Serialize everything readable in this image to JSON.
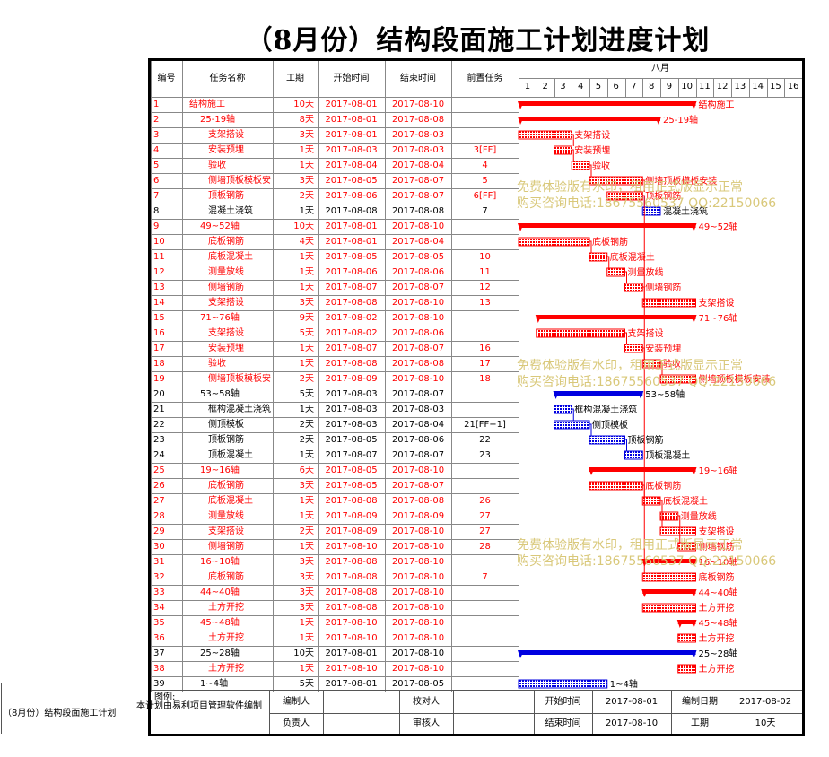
{
  "title": "（8月份）结构段面施工计划进度计划",
  "table": {
    "headers": [
      "编号",
      "任务名称",
      "工期",
      "开始时间",
      "结束时间",
      "前置任务"
    ],
    "month_label": "八月",
    "days": [
      "1",
      "2",
      "3",
      "4",
      "5",
      "6",
      "7",
      "8",
      "9",
      "10",
      "11",
      "12",
      "13",
      "14",
      "15",
      "16"
    ]
  },
  "colors": {
    "red": "#ff0000",
    "blue": "#0000e0",
    "grid": "#888888",
    "watermark": "#d9c87a"
  },
  "chart_data": {
    "type": "gantt",
    "x_unit": "day of August 2017",
    "x_range": [
      1,
      16
    ],
    "tasks": [
      {
        "id": "1",
        "name": "结构施工",
        "duration": "10天",
        "start": "2017-08-01",
        "end": "2017-08-10",
        "pred": "",
        "color": "red",
        "summary": true,
        "indent": 0,
        "s": 1,
        "e": 10,
        "label": "结构施工"
      },
      {
        "id": "2",
        "name": "25-19轴",
        "duration": "8天",
        "start": "2017-08-01",
        "end": "2017-08-08",
        "pred": "",
        "color": "red",
        "summary": true,
        "indent": 1,
        "s": 1,
        "e": 8,
        "label": "25-19轴"
      },
      {
        "id": "3",
        "name": "支架搭设",
        "duration": "3天",
        "start": "2017-08-01",
        "end": "2017-08-03",
        "pred": "",
        "color": "red",
        "summary": false,
        "indent": 2,
        "s": 1,
        "e": 3,
        "label": "支架搭设"
      },
      {
        "id": "4",
        "name": "安装预埋",
        "duration": "1天",
        "start": "2017-08-03",
        "end": "2017-08-03",
        "pred": "3[FF]",
        "color": "red",
        "summary": false,
        "indent": 2,
        "s": 3,
        "e": 3,
        "label": "安装预埋"
      },
      {
        "id": "5",
        "name": "验收",
        "duration": "1天",
        "start": "2017-08-04",
        "end": "2017-08-04",
        "pred": "4",
        "color": "red",
        "summary": false,
        "indent": 2,
        "s": 4,
        "e": 4,
        "label": "验收"
      },
      {
        "id": "6",
        "name": "侧墙顶板模板安装",
        "duration": "3天",
        "start": "2017-08-05",
        "end": "2017-08-07",
        "pred": "5",
        "color": "red",
        "summary": false,
        "indent": 2,
        "s": 5,
        "e": 7,
        "label": "侧墙顶板模板安装"
      },
      {
        "id": "7",
        "name": "顶板钢筋",
        "duration": "2天",
        "start": "2017-08-06",
        "end": "2017-08-07",
        "pred": "6[FF]",
        "color": "red",
        "summary": false,
        "indent": 2,
        "s": 6,
        "e": 7,
        "label": "顶板钢筋"
      },
      {
        "id": "8",
        "name": "混凝土浇筑",
        "duration": "1天",
        "start": "2017-08-08",
        "end": "2017-08-08",
        "pred": "7",
        "color": "blue",
        "summary": false,
        "indent": 2,
        "s": 8,
        "e": 8,
        "label": "混凝土浇筑"
      },
      {
        "id": "9",
        "name": "49~52轴",
        "duration": "10天",
        "start": "2017-08-01",
        "end": "2017-08-10",
        "pred": "",
        "color": "red",
        "summary": true,
        "indent": 1,
        "s": 1,
        "e": 10,
        "label": "49~52轴"
      },
      {
        "id": "10",
        "name": "底板钢筋",
        "duration": "4天",
        "start": "2017-08-01",
        "end": "2017-08-04",
        "pred": "",
        "color": "red",
        "summary": false,
        "indent": 2,
        "s": 1,
        "e": 4,
        "label": "底板钢筋"
      },
      {
        "id": "11",
        "name": "底板混凝土",
        "duration": "1天",
        "start": "2017-08-05",
        "end": "2017-08-05",
        "pred": "10",
        "color": "red",
        "summary": false,
        "indent": 2,
        "s": 5,
        "e": 5,
        "label": "底板混凝土"
      },
      {
        "id": "12",
        "name": "测量放线",
        "duration": "1天",
        "start": "2017-08-06",
        "end": "2017-08-06",
        "pred": "11",
        "color": "red",
        "summary": false,
        "indent": 2,
        "s": 6,
        "e": 6,
        "label": "测量放线"
      },
      {
        "id": "13",
        "name": "侧墙钢筋",
        "duration": "1天",
        "start": "2017-08-07",
        "end": "2017-08-07",
        "pred": "12",
        "color": "red",
        "summary": false,
        "indent": 2,
        "s": 7,
        "e": 7,
        "label": "侧墙钢筋"
      },
      {
        "id": "14",
        "name": "支架搭设",
        "duration": "3天",
        "start": "2017-08-08",
        "end": "2017-08-10",
        "pred": "13",
        "color": "red",
        "summary": false,
        "indent": 2,
        "s": 8,
        "e": 10,
        "label": "支架搭设"
      },
      {
        "id": "15",
        "name": "71~76轴",
        "duration": "9天",
        "start": "2017-08-02",
        "end": "2017-08-10",
        "pred": "",
        "color": "red",
        "summary": true,
        "indent": 1,
        "s": 2,
        "e": 10,
        "label": "71~76轴"
      },
      {
        "id": "16",
        "name": "支架搭设",
        "duration": "5天",
        "start": "2017-08-02",
        "end": "2017-08-06",
        "pred": "",
        "color": "red",
        "summary": false,
        "indent": 2,
        "s": 2,
        "e": 6,
        "label": "支架搭设"
      },
      {
        "id": "17",
        "name": "安装预埋",
        "duration": "1天",
        "start": "2017-08-07",
        "end": "2017-08-07",
        "pred": "16",
        "color": "red",
        "summary": false,
        "indent": 2,
        "s": 7,
        "e": 7,
        "label": "安装预埋"
      },
      {
        "id": "18",
        "name": "验收",
        "duration": "1天",
        "start": "2017-08-08",
        "end": "2017-08-08",
        "pred": "17",
        "color": "red",
        "summary": false,
        "indent": 2,
        "s": 8,
        "e": 8,
        "label": "验收"
      },
      {
        "id": "19",
        "name": "侧墙顶板模板安装",
        "duration": "2天",
        "start": "2017-08-09",
        "end": "2017-08-10",
        "pred": "18",
        "color": "red",
        "summary": false,
        "indent": 2,
        "s": 9,
        "e": 10,
        "label": "侧墙顶板模板安装"
      },
      {
        "id": "20",
        "name": "53~58轴",
        "duration": "5天",
        "start": "2017-08-03",
        "end": "2017-08-07",
        "pred": "",
        "color": "blue",
        "summary": true,
        "indent": 1,
        "s": 3,
        "e": 7,
        "label": "53~58轴"
      },
      {
        "id": "21",
        "name": "框构混凝土浇筑",
        "duration": "1天",
        "start": "2017-08-03",
        "end": "2017-08-03",
        "pred": "",
        "color": "blue",
        "summary": false,
        "indent": 2,
        "s": 3,
        "e": 3,
        "label": "框构混凝土浇筑"
      },
      {
        "id": "22",
        "name": "侧顶模板",
        "duration": "2天",
        "start": "2017-08-03",
        "end": "2017-08-04",
        "pred": "21[FF+1]",
        "color": "blue",
        "summary": false,
        "indent": 2,
        "s": 3,
        "e": 4,
        "label": "侧顶模板"
      },
      {
        "id": "23",
        "name": "顶板钢筋",
        "duration": "2天",
        "start": "2017-08-05",
        "end": "2017-08-06",
        "pred": "22",
        "color": "blue",
        "summary": false,
        "indent": 2,
        "s": 5,
        "e": 6,
        "label": "顶板钢筋"
      },
      {
        "id": "24",
        "name": "顶板混凝土",
        "duration": "1天",
        "start": "2017-08-07",
        "end": "2017-08-07",
        "pred": "23",
        "color": "blue",
        "summary": false,
        "indent": 2,
        "s": 7,
        "e": 7,
        "label": "顶板混凝土"
      },
      {
        "id": "25",
        "name": "19~16轴",
        "duration": "6天",
        "start": "2017-08-05",
        "end": "2017-08-10",
        "pred": "",
        "color": "red",
        "summary": true,
        "indent": 1,
        "s": 5,
        "e": 10,
        "label": "19~16轴"
      },
      {
        "id": "26",
        "name": "底板钢筋",
        "duration": "3天",
        "start": "2017-08-05",
        "end": "2017-08-07",
        "pred": "",
        "color": "red",
        "summary": false,
        "indent": 2,
        "s": 5,
        "e": 7,
        "label": "底板钢筋"
      },
      {
        "id": "27",
        "name": "底板混凝土",
        "duration": "1天",
        "start": "2017-08-08",
        "end": "2017-08-08",
        "pred": "26",
        "color": "red",
        "summary": false,
        "indent": 2,
        "s": 8,
        "e": 8,
        "label": "底板混凝土"
      },
      {
        "id": "28",
        "name": "测量放线",
        "duration": "1天",
        "start": "2017-08-09",
        "end": "2017-08-09",
        "pred": "27",
        "color": "red",
        "summary": false,
        "indent": 2,
        "s": 9,
        "e": 9,
        "label": "测量放线"
      },
      {
        "id": "29",
        "name": "支架搭设",
        "duration": "2天",
        "start": "2017-08-09",
        "end": "2017-08-10",
        "pred": "27",
        "color": "red",
        "summary": false,
        "indent": 2,
        "s": 9,
        "e": 10,
        "label": "支架搭设"
      },
      {
        "id": "30",
        "name": "侧墙钢筋",
        "duration": "1天",
        "start": "2017-08-10",
        "end": "2017-08-10",
        "pred": "28",
        "color": "red",
        "summary": false,
        "indent": 2,
        "s": 10,
        "e": 10,
        "label": "侧墙钢筋"
      },
      {
        "id": "31",
        "name": "16~10轴",
        "duration": "3天",
        "start": "2017-08-08",
        "end": "2017-08-10",
        "pred": "",
        "color": "red",
        "summary": true,
        "indent": 1,
        "s": 8,
        "e": 10,
        "label": "16~10轴"
      },
      {
        "id": "32",
        "name": "底板钢筋",
        "duration": "3天",
        "start": "2017-08-08",
        "end": "2017-08-10",
        "pred": "7",
        "color": "red",
        "summary": false,
        "indent": 2,
        "s": 8,
        "e": 10,
        "label": "底板钢筋"
      },
      {
        "id": "33",
        "name": "44~40轴",
        "duration": "3天",
        "start": "2017-08-08",
        "end": "2017-08-10",
        "pred": "",
        "color": "red",
        "summary": true,
        "indent": 1,
        "s": 8,
        "e": 10,
        "label": "44~40轴"
      },
      {
        "id": "34",
        "name": "土方开挖",
        "duration": "3天",
        "start": "2017-08-08",
        "end": "2017-08-10",
        "pred": "",
        "color": "red",
        "summary": false,
        "indent": 2,
        "s": 8,
        "e": 10,
        "label": "土方开挖"
      },
      {
        "id": "35",
        "name": "45~48轴",
        "duration": "1天",
        "start": "2017-08-10",
        "end": "2017-08-10",
        "pred": "",
        "color": "red",
        "summary": true,
        "indent": 1,
        "s": 10,
        "e": 10,
        "label": "45~48轴"
      },
      {
        "id": "36",
        "name": "土方开挖",
        "duration": "1天",
        "start": "2017-08-10",
        "end": "2017-08-10",
        "pred": "",
        "color": "red",
        "summary": false,
        "indent": 2,
        "s": 10,
        "e": 10,
        "label": "土方开挖"
      },
      {
        "id": "37",
        "name": "25~28轴",
        "duration": "10天",
        "start": "2017-08-01",
        "end": "2017-08-10",
        "pred": "",
        "color": "blue",
        "summary": true,
        "indent": 1,
        "s": 1,
        "e": 10,
        "label": "25~28轴"
      },
      {
        "id": "38",
        "name": "土方开挖",
        "duration": "1天",
        "start": "2017-08-10",
        "end": "2017-08-10",
        "pred": "",
        "color": "red",
        "summary": false,
        "indent": 2,
        "s": 10,
        "e": 10,
        "label": "土方开挖"
      },
      {
        "id": "39",
        "name": "1~4轴",
        "duration": "5天",
        "start": "2017-08-01",
        "end": "2017-08-05",
        "pred": "",
        "color": "blue",
        "summary": false,
        "indent": 1,
        "s": 1,
        "e": 5,
        "label": "1~4轴"
      }
    ]
  },
  "watermarks": [
    {
      "line1": "免费体验版有水印，租用正式版显示正常",
      "line2": "购买咨询电话:18675560537 QQ:22150066"
    },
    {
      "line1": "免费体验版有水印，租用正式版显示正常",
      "line2": "购买咨询电话:18675560537 QQ:22150066"
    },
    {
      "line1": "免费体验版有水印，租用正式版显示正常",
      "line2": "购买咨询电话:18675560537 QQ:22150066"
    }
  ],
  "footer": {
    "left_caption": "（8月份）结构段面施工计划",
    "legend_label": "图例:",
    "software_note": "本计划由易利项目管理软件编制",
    "preparer_label": "编制人",
    "preparer_value": "",
    "checker_label": "校对人",
    "checker_value": "",
    "owner_label": "负责人",
    "owner_value": "",
    "reviewer_label": "审核人",
    "reviewer_value": "",
    "start_label": "开始时间",
    "start_value": "2017-08-01",
    "end_label": "结束时间",
    "end_value": "2017-08-10",
    "date_label": "编制日期",
    "date_value": "2017-08-02",
    "duration_label": "工期",
    "duration_value": "10天"
  }
}
